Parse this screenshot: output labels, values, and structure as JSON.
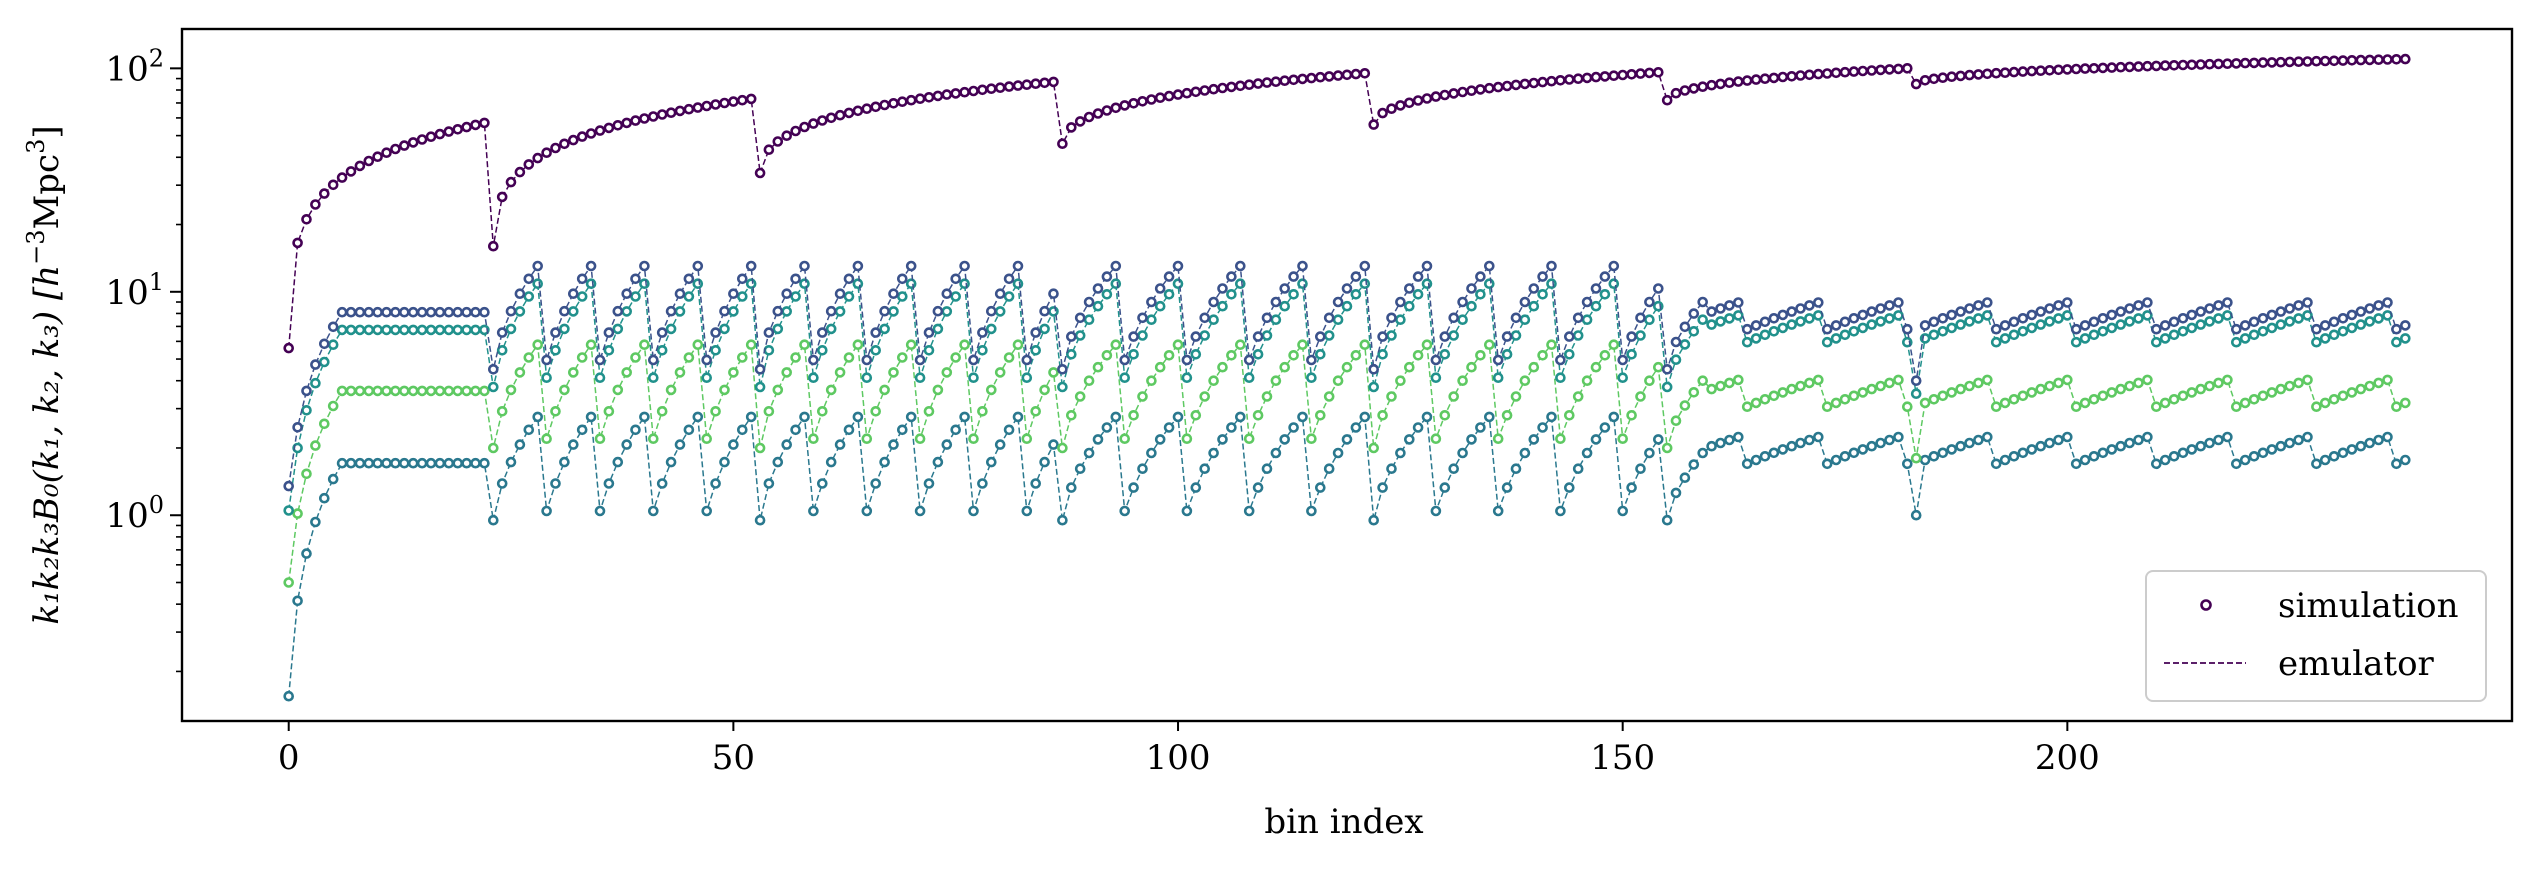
{
  "chart_data": {
    "type": "line",
    "xlabel": "bin index",
    "ylabel": "k1k2k3B0(k1, k2, k3) [h^-3Mpc^3]",
    "ylabel_parts": {
      "main": "k₁k₂k₃B₀(k₁, k₂, k₃) [h",
      "sup": "−3",
      "mid": "Mpc",
      "sup2": "3",
      "end": "]"
    },
    "xlim": [
      -12,
      250
    ],
    "ylim": [
      0.12,
      150
    ],
    "y_scale": "log",
    "x_ticks": [
      0,
      50,
      100,
      150,
      200
    ],
    "y_ticks": [
      {
        "value": 1,
        "base": "10",
        "exp": "0"
      },
      {
        "value": 10,
        "base": "10",
        "exp": "1"
      },
      {
        "value": 100,
        "base": "10",
        "exp": "2"
      }
    ],
    "n_bins": 239,
    "grid": false,
    "legend": {
      "placement": "lower-right",
      "entries": [
        {
          "label": "simulation",
          "marker": "open-circle"
        },
        {
          "label": "emulator",
          "marker": "dashed-line"
        }
      ]
    },
    "series": [
      {
        "color": "#440154",
        "start_value": 5.6,
        "segments": [
          {
            "start": 0,
            "end": 22,
            "from": 5.6,
            "to": 57
          },
          {
            "start": 23,
            "end": 52,
            "from": 16,
            "to": 73
          },
          {
            "start": 53,
            "end": 86,
            "from": 34,
            "to": 87
          },
          {
            "start": 87,
            "end": 121,
            "from": 46,
            "to": 95
          },
          {
            "start": 122,
            "end": 154,
            "from": 56,
            "to": 96
          },
          {
            "start": 155,
            "end": 182,
            "from": 72,
            "to": 100
          },
          {
            "start": 183,
            "end": 238,
            "from": 85,
            "to": 110
          }
        ]
      },
      {
        "color": "#3b528b",
        "start_value": 1.35,
        "level_early": 9,
        "level_late": 8,
        "peak": 14
      },
      {
        "color": "#21918c",
        "start_value": 1.05,
        "level_early": 7.5,
        "level_late": 7,
        "peak": 13
      },
      {
        "color": "#5ec962",
        "start_value": 0.5,
        "level_early": 4,
        "level_late": 3.6,
        "peak": 6
      },
      {
        "color": "#2a788e",
        "start_value": 0.155,
        "level_early": 1.9,
        "level_late": 2,
        "peak": 3
      }
    ]
  }
}
